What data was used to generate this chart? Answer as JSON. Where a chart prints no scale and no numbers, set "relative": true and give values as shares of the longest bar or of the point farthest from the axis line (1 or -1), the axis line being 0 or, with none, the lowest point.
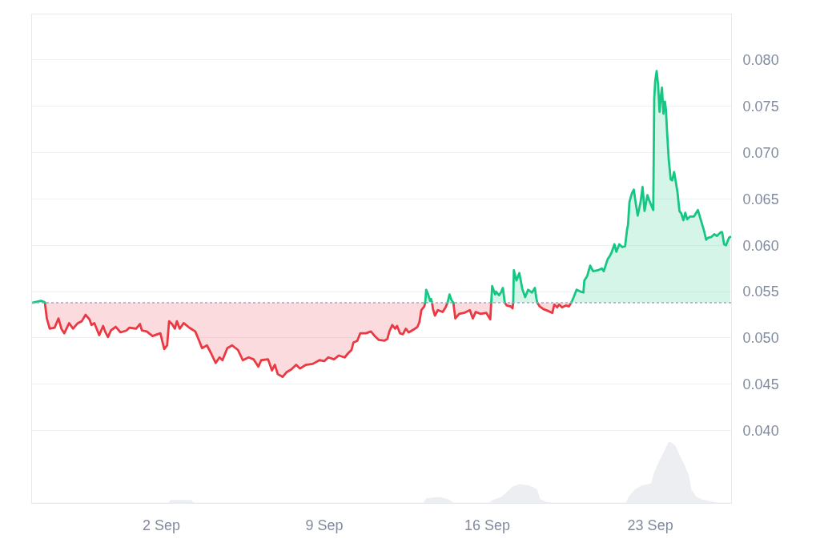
{
  "chart_data": [
    {
      "type": "area",
      "xlim": [
        "--08-27T10:45",
        "--09-26T11:15"
      ],
      "xticks": [
        {
          "value": "--09-02",
          "label": "2 Sep"
        },
        {
          "value": "--09-09",
          "label": "9 Sep"
        },
        {
          "value": "--09-16",
          "label": "16 Sep"
        },
        {
          "value": "--09-23",
          "label": "23 Sep"
        }
      ],
      "ylim": [
        0.0322,
        0.0849
      ],
      "yticks": [
        {
          "value": 0.04,
          "label": "0.040"
        },
        {
          "value": 0.045,
          "label": "0.045"
        },
        {
          "value": 0.05,
          "label": "0.050"
        },
        {
          "value": 0.055,
          "label": "0.055"
        },
        {
          "value": 0.06,
          "label": "0.060"
        },
        {
          "value": 0.065,
          "label": "0.065"
        },
        {
          "value": 0.07,
          "label": "0.070"
        },
        {
          "value": 0.075,
          "label": "0.075"
        },
        {
          "value": 0.08,
          "label": "0.080"
        }
      ],
      "grid": "y",
      "ref_lines": [
        {
          "axis": "y",
          "value": 0.0538,
          "color": "#a1a7bb",
          "line_style": "dotted"
        }
      ],
      "series": [
        {
          "type": "line",
          "color": "#ea3943",
          "x": [
            "--08-28T00:00",
            "--08-28T02:00",
            "--08-28T05:00",
            "--08-28T10:00",
            "--08-28T14:00",
            "--08-28T17:00",
            "--08-28T20:00",
            "--08-29T01:00",
            "--08-29T05:00",
            "--08-29T10:00",
            "--08-29T14:00",
            "--08-29T18:00",
            "--08-29T22:00",
            "--08-30T00:00",
            "--08-30T03:00",
            "--08-30T08:00",
            "--08-30T12:00",
            "--08-30T14:00",
            "--08-30T17:00",
            "--08-30T20:00",
            "--08-31T01:00",
            "--08-31T06:00",
            "--08-31T12:00",
            "--08-31T15:00",
            "--08-31T22:00",
            "--09-01T02:00",
            "--09-01T04:00",
            "--09-01T09:00",
            "--09-01T15:00",
            "--09-01T20:00",
            "--09-01T23:00",
            "--09-02T03:00",
            "--09-02T06:00",
            "--09-02T08:00",
            "--09-02T11:00",
            "--09-02T14:00",
            "--09-02T16:00",
            "--09-02T19:00",
            "--09-02T23:00",
            "--09-03T05:00",
            "--09-03T11:00",
            "--09-03T15:00",
            "--09-03T18:00",
            "--09-03T23:00",
            "--09-04T03:00",
            "--09-04T08:00",
            "--09-04T12:00",
            "--09-04T15:00",
            "--09-04T20:00",
            "--09-05T01:00",
            "--09-05T07:00",
            "--09-05T12:00",
            "--09-05T18:00",
            "--09-05T23:00",
            "--09-06T04:00",
            "--09-06T07:00",
            "--09-06T14:00",
            "--09-06T18:00",
            "--09-06T21:00",
            "--09-07T00:00",
            "--09-07T05:00",
            "--09-07T09:00",
            "--09-07T14:00",
            "--09-07T19:00",
            "--09-07T23:00",
            "--09-08T05:00",
            "--09-08T12:00",
            "--09-08T19:00",
            "--09-09T00:00",
            "--09-09T04:00",
            "--09-09T10:00",
            "--09-09T15:00",
            "--09-09T21:00",
            "--09-10T01:00",
            "--09-10T04:00",
            "--09-10T06:00",
            "--09-10T10:00",
            "--09-10T13:00",
            "--09-10T19:00",
            "--09-11T00:00",
            "--09-11T04:00",
            "--09-11T08:00",
            "--09-11T14:00",
            "--09-11T17:00",
            "--09-11T19:00",
            "--09-11T22:00",
            "--09-12T01:00",
            "--09-12T03:00",
            "--09-12T06:00",
            "--09-12T09:00",
            "--09-12T12:00",
            "--09-12T15:00",
            "--09-12T20:00",
            "--09-13T00:00",
            "--09-13T02:00",
            "--09-13T04:00",
            "--09-13T07:00",
            "--09-13T08:00",
            "--09-13T11:00",
            "--09-13T15:00",
            "--09-13T16:00",
            "--09-13T18:00",
            "--09-13T21:00",
            "--09-14T02:00",
            "--09-14T05:00",
            "--09-14T07:00",
            "--09-14T09:00",
            "--09-14T13:00",
            "--09-14T15:00",
            "--09-14T19:00",
            "--09-15T00:00",
            "--09-15T06:00",
            "--09-15T09:00",
            "--09-15T12:00",
            "--09-15T17:00",
            "--09-15T23:00",
            "--09-16T03:00",
            "--09-16T04:00",
            "--09-16T14:00",
            "--09-16T18:00",
            "--09-16T20:00",
            "--09-17T00:00",
            "--09-17T02:00",
            "--09-17T02:40",
            "--09-17T12:00",
            "--09-18T03:30",
            "--09-18T06:00",
            "--09-18T10:00",
            "--09-18T15:00",
            "--09-18T19:00",
            "--09-18T21:00",
            "--09-19T00:00",
            "--09-19T02:00",
            "--09-19T05:00",
            "--09-19T09:00",
            "--09-19T12:00",
            "--09-19T14:30"
          ],
          "values": [
            0.0538,
            0.0521,
            0.051,
            0.0511,
            0.0521,
            0.051,
            0.0505,
            0.0516,
            0.051,
            0.0516,
            0.0518,
            0.0525,
            0.052,
            0.0514,
            0.0516,
            0.0503,
            0.0513,
            0.0507,
            0.0501,
            0.0508,
            0.0512,
            0.0506,
            0.0508,
            0.0511,
            0.051,
            0.0515,
            0.0508,
            0.0507,
            0.0502,
            0.0504,
            0.0505,
            0.0488,
            0.0492,
            0.0518,
            0.0515,
            0.051,
            0.0518,
            0.051,
            0.0516,
            0.0511,
            0.0507,
            0.0497,
            0.0489,
            0.0492,
            0.0484,
            0.0473,
            0.0479,
            0.0476,
            0.0489,
            0.0492,
            0.0487,
            0.0476,
            0.0479,
            0.0477,
            0.0469,
            0.0476,
            0.0477,
            0.0465,
            0.0471,
            0.0461,
            0.0458,
            0.0463,
            0.0466,
            0.0471,
            0.0467,
            0.0471,
            0.0472,
            0.0476,
            0.0475,
            0.0479,
            0.0477,
            0.0481,
            0.0479,
            0.0484,
            0.0487,
            0.0495,
            0.0497,
            0.0505,
            0.0505,
            0.0507,
            0.0502,
            0.0498,
            0.0497,
            0.0499,
            0.0507,
            0.0514,
            0.051,
            0.0513,
            0.0505,
            0.0504,
            0.051,
            0.0506,
            0.0509,
            0.0512,
            0.0517,
            0.053,
            0.0534,
            0.0538,
            null,
            0.0538,
            0.0531,
            0.0524,
            0.053,
            0.0528,
            0.0533,
            0.0538,
            null,
            0.0538,
            0.0521,
            0.0526,
            0.0527,
            0.053,
            0.0521,
            0.0528,
            0.0526,
            0.0527,
            0.052,
            0.0538,
            null,
            0.0538,
            0.0535,
            0.0534,
            0.0532,
            0.0538,
            null,
            0.0538,
            0.0534,
            0.0531,
            0.0529,
            0.0527,
            0.0536,
            0.0533,
            0.0536,
            0.0533,
            0.0535,
            0.0534,
            0.0538
          ],
          "lower": [
            0.0538,
            0.0521,
            0.051,
            0.0511,
            0.0521,
            0.051,
            0.0505,
            0.0516,
            0.051,
            0.0516,
            0.0518,
            0.0525,
            0.052,
            0.0514,
            0.0516,
            0.0503,
            0.0513,
            0.0507,
            0.0501,
            0.0508,
            0.0512,
            0.0506,
            0.0508,
            0.0511,
            0.051,
            0.0515,
            0.0508,
            0.0507,
            0.0502,
            0.0504,
            0.0505,
            0.0488,
            0.0492,
            0.0518,
            0.0515,
            0.051,
            0.0518,
            0.051,
            0.0516,
            0.0511,
            0.0507,
            0.0497,
            0.0489,
            0.0492,
            0.0484,
            0.0473,
            0.0479,
            0.0476,
            0.0489,
            0.0492,
            0.0487,
            0.0476,
            0.0479,
            0.0477,
            0.0469,
            0.0476,
            0.0477,
            0.0465,
            0.0471,
            0.0461,
            0.0458,
            0.0463,
            0.0466,
            0.0471,
            0.0467,
            0.0471,
            0.0472,
            0.0476,
            0.0475,
            0.0479,
            0.0477,
            0.0481,
            0.0479,
            0.0484,
            0.0487,
            0.0495,
            0.0497,
            0.0505,
            0.0505,
            0.0507,
            0.0502,
            0.0498,
            0.0497,
            0.0499,
            0.0507,
            0.0514,
            0.051,
            0.0513,
            0.0505,
            0.0504,
            0.051,
            0.0506,
            0.0509,
            0.0512,
            0.0517,
            0.053,
            0.0534,
            0.0538,
            null,
            0.0538,
            0.0531,
            0.0524,
            0.053,
            0.0528,
            0.0533,
            0.0538,
            null,
            0.0538,
            0.0521,
            0.0526,
            0.0527,
            0.053,
            0.0521,
            0.0528,
            0.0526,
            0.0527,
            0.052,
            0.0538,
            null,
            0.0538,
            0.0535,
            0.0534,
            0.0532,
            0.0538,
            null,
            0.0538,
            0.0534,
            0.0531,
            0.0529,
            0.0527,
            0.0536,
            0.0533,
            0.0536,
            0.0533,
            0.0535,
            0.0534,
            0.0538
          ],
          "upper": [
            0.0538,
            0.0538,
            0.0538,
            0.0538,
            0.0538,
            0.0538,
            0.0538,
            0.0538,
            0.0538,
            0.0538,
            0.0538,
            0.0538,
            0.0538,
            0.0538,
            0.0538,
            0.0538,
            0.0538,
            0.0538,
            0.0538,
            0.0538,
            0.0538,
            0.0538,
            0.0538,
            0.0538,
            0.0538,
            0.0538,
            0.0538,
            0.0538,
            0.0538,
            0.0538,
            0.0538,
            0.0538,
            0.0538,
            0.0538,
            0.0538,
            0.0538,
            0.0538,
            0.0538,
            0.0538,
            0.0538,
            0.0538,
            0.0538,
            0.0538,
            0.0538,
            0.0538,
            0.0538,
            0.0538,
            0.0538,
            0.0538,
            0.0538,
            0.0538,
            0.0538,
            0.0538,
            0.0538,
            0.0538,
            0.0538,
            0.0538,
            0.0538,
            0.0538,
            0.0538,
            0.0538,
            0.0538,
            0.0538,
            0.0538,
            0.0538,
            0.0538,
            0.0538,
            0.0538,
            0.0538,
            0.0538,
            0.0538,
            0.0538,
            0.0538,
            0.0538,
            0.0538,
            0.0538,
            0.0538,
            0.0538,
            0.0538,
            0.0538,
            0.0538,
            0.0538,
            0.0538,
            0.0538,
            0.0538,
            0.0538,
            0.0538,
            0.0538,
            0.0538,
            0.0538,
            0.0538,
            0.0538,
            0.0538,
            0.0538,
            0.0538,
            0.0538,
            0.0538,
            0.0538,
            null,
            0.0538,
            0.0538,
            0.0538,
            0.0538,
            0.0538,
            0.0538,
            0.0538,
            null,
            0.0538,
            0.0538,
            0.0538,
            0.0538,
            0.0538,
            0.0538,
            0.0538,
            0.0538,
            0.0538,
            0.0538,
            0.0538,
            null,
            0.0538,
            0.0538,
            0.0538,
            0.0538,
            0.0538,
            null,
            0.0538,
            0.0538,
            0.0538,
            0.0538,
            0.0538,
            0.0538,
            0.0538,
            0.0538,
            0.0538,
            0.0538,
            0.0538,
            0.0538
          ]
        },
        {
          "color": "#16c784",
          "x": [
            "--08-27T11:30",
            "--08-27T20:00",
            "--08-27T23:00",
            "--08-28T00:00",
            "--09-04T12:00",
            "--09-13T08:00",
            "--09-13T09:00",
            "--09-13T11:00",
            "--09-13T13:00",
            "--09-13T14:00",
            "--09-13T15:00",
            "--09-13T21:00",
            "--09-14T07:00",
            "--09-14T09:00",
            "--09-14T11:00",
            "--09-14T13:00",
            "--09-15T09:00",
            "--09-16T04:00",
            "--09-16T05:00",
            "--09-16T08:00",
            "--09-16T09:00",
            "--09-16T12:00",
            "--09-16T14:00",
            "--09-16T16:00",
            "--09-16T18:00",
            "--09-17T00:00",
            "--09-17T02:40",
            "--09-17T03:20",
            "--09-17T06:00",
            "--09-17T09:00",
            "--09-17T12:00",
            "--09-17T15:00",
            "--09-17T18:00",
            "--09-17T22:00",
            "--09-18T01:00",
            "--09-18T02:30",
            "--09-18T03:30",
            "--09-18T19:00",
            "--09-19T14:30",
            "--09-19T17:00",
            "--09-19T20:00",
            "--09-20T00:00",
            "--09-20T03:00",
            "--09-20T04:00",
            "--09-20T07:00",
            "--09-20T10:00",
            "--09-20T13:00",
            "--09-20T18:00",
            "--09-20T22:00",
            "--09-21T00:00",
            "--09-21T04:00",
            "--09-21T06:00",
            "--09-21T08:00",
            "--09-21T11:00",
            "--09-21T13:00",
            "--09-21T16:00",
            "--09-21T19:00",
            "--09-21T22:00",
            "--09-22T00:00",
            "--09-22T01:00",
            "--09-22T02:30",
            "--09-22T05:00",
            "--09-22T07:00",
            "--09-22T09:00",
            "--09-22T11:00",
            "--09-22T14:00",
            "--09-22T16:00",
            "--09-22T18:00",
            "--09-22T21:00",
            "--09-22T23:00",
            "--09-23T01:00",
            "--09-23T03:00",
            "--09-23T04:00",
            "--09-23T05:00",
            "--09-23T06:30",
            "--09-23T08:00",
            "--09-23T09:30",
            "--09-23T11:00",
            "--09-23T12:00",
            "--09-23T13:30",
            "--09-23T15:00",
            "--09-23T16:00",
            "--09-23T17:30",
            "--09-23T19:00",
            "--09-23T21:00",
            "--09-23T22:30",
            "--09-24T00:30",
            "--09-24T02:00",
            "--09-24T04:00",
            "--09-24T06:00",
            "--09-24T08:00",
            "--09-24T10:00",
            "--09-24T12:00",
            "--09-24T14:00",
            "--09-24T17:00",
            "--09-24T21:00",
            "--09-25T01:00",
            "--09-25T03:00",
            "--09-25T07:00",
            "--09-25T09:30",
            "--09-25T11:30",
            "--09-25T15:00",
            "--09-25T18:00",
            "--09-25T20:30",
            "--09-26T00:30",
            "--09-26T02:00",
            "--09-26T04:00",
            "--09-26T06:00",
            "--09-26T09:00",
            "--09-26T10:30"
          ],
          "values": [
            0.0538,
            0.054,
            0.0539,
            0.0538,
            null,
            0.0538,
            0.0552,
            0.0547,
            0.054,
            0.0542,
            0.0538,
            null,
            0.0538,
            0.0547,
            0.0541,
            0.0538,
            null,
            0.0538,
            0.0556,
            0.0547,
            0.055,
            0.0546,
            0.0549,
            0.0554,
            0.0538,
            null,
            0.0538,
            0.0573,
            0.0562,
            0.057,
            0.0553,
            0.0544,
            0.0552,
            0.0549,
            0.0554,
            0.0543,
            0.0538,
            null,
            0.0538,
            0.0544,
            0.0552,
            0.055,
            0.0549,
            0.0562,
            0.0567,
            0.0578,
            0.0572,
            0.0573,
            0.0575,
            0.0572,
            0.0585,
            0.0588,
            0.0592,
            0.0601,
            0.0593,
            0.0601,
            0.0598,
            0.0599,
            0.0617,
            0.0622,
            0.0647,
            0.0656,
            0.066,
            0.0645,
            0.0632,
            0.0647,
            0.0663,
            0.0637,
            0.0654,
            0.0648,
            0.0643,
            0.0638,
            0.0758,
            0.0777,
            0.0788,
            0.0773,
            0.0744,
            0.0762,
            0.077,
            0.0742,
            0.0755,
            0.0747,
            0.0718,
            0.0692,
            0.0671,
            0.067,
            0.0679,
            0.067,
            0.0657,
            0.0637,
            0.0634,
            0.0627,
            0.0635,
            0.0628,
            0.0631,
            0.0631,
            0.0638,
            0.0631,
            0.0617,
            0.0606,
            0.0608,
            0.0609,
            0.0612,
            0.061,
            0.0614,
            0.0614,
            0.0601,
            0.06,
            0.0608,
            0.0609
          ]
        }
      ]
    },
    {
      "type": "area",
      "relative": true,
      "tick_labels": false,
      "color": "#eceef2",
      "xlim": [
        "--08-27T10:45",
        "--09-26T11:15"
      ],
      "x": [
        "--08-27T11:30",
        "--09-02T07:30",
        "--09-02T09:30",
        "--09-03T07:00",
        "--09-03T09:00",
        "--09-13T06:30",
        "--09-13T09:00",
        "--09-13T23:00",
        "--09-14T08:30",
        "--09-14T13:00",
        "--09-16T02:30",
        "--09-16T05:00",
        "--09-16T14:30",
        "--09-17T02:00",
        "--09-17T09:00",
        "--09-17T18:30",
        "--09-18T03:00",
        "--09-18T06:00",
        "--09-18T13:00",
        "--09-18T18:00",
        "--09-21T23:00",
        "--09-22T02:30",
        "--09-22T08:30",
        "--09-22T15:30",
        "--09-23T01:00",
        "--09-23T04:00",
        "--09-23T09:00",
        "--09-23T14:00",
        "--09-23T19:30",
        "--09-24T01:30",
        "--09-24T06:00",
        "--09-24T10:30",
        "--09-24T15:30",
        "--09-24T18:00",
        "--09-24T23:00",
        "--09-25T05:30",
        "--09-25T14:30",
        "--09-25T21:00",
        "--09-26T10:30"
      ],
      "values": [
        0,
        0,
        0.04,
        0.04,
        0,
        0,
        0.07,
        0.09,
        0.05,
        0,
        0,
        0.04,
        0.09,
        0.26,
        0.3,
        0.28,
        0.22,
        0.06,
        0.01,
        0,
        0,
        0.11,
        0.22,
        0.28,
        0.31,
        0.48,
        0.67,
        0.82,
        1,
        0.93,
        0.77,
        0.63,
        0.44,
        0.22,
        0.1,
        0.05,
        0.02,
        0,
        0
      ]
    }
  ]
}
